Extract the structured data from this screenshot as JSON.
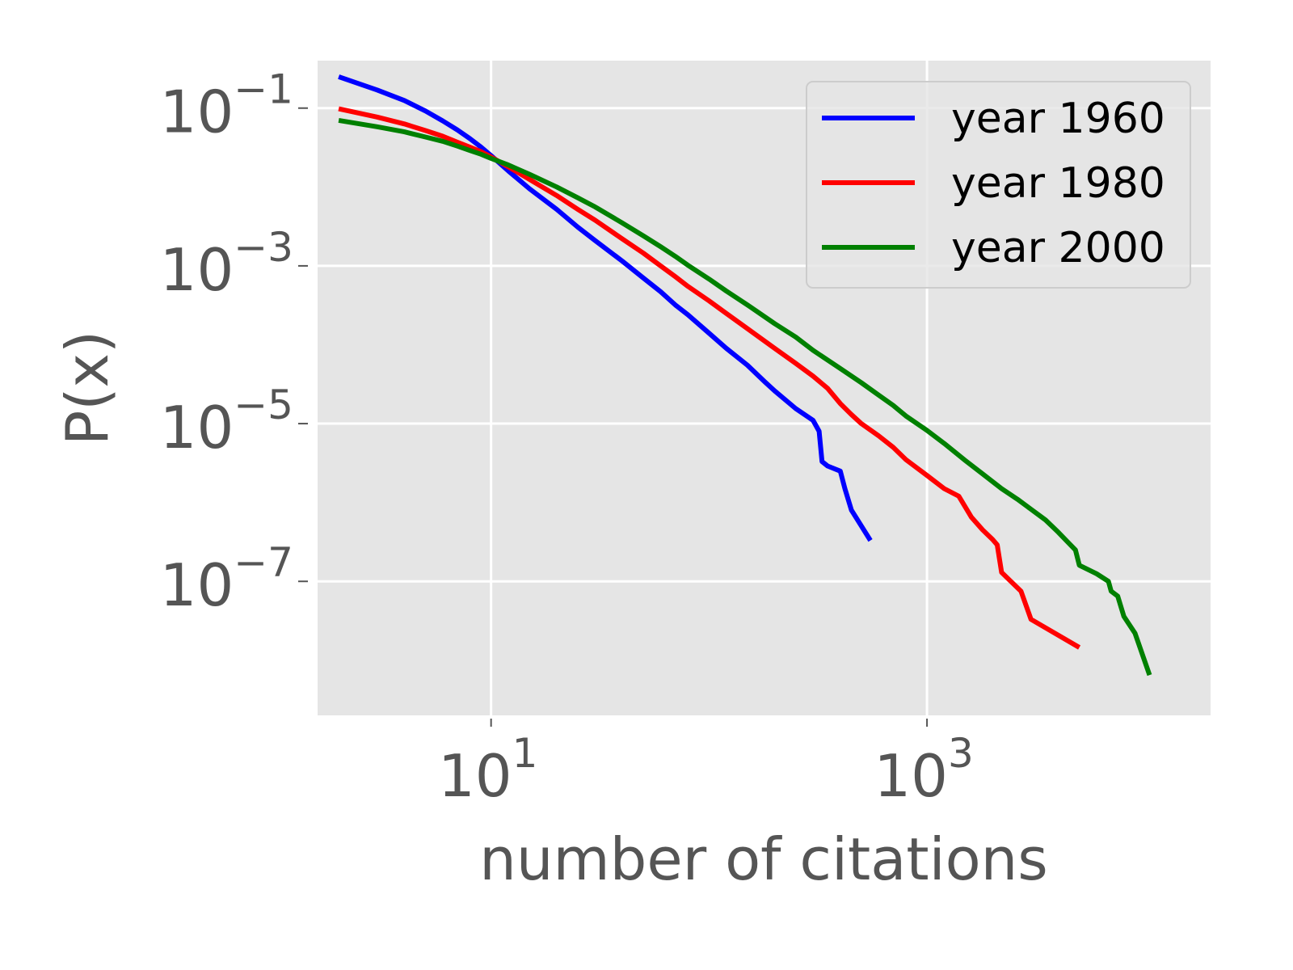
{
  "chart_data": {
    "type": "line",
    "xlabel": "number of citations",
    "ylabel": "P(x)",
    "x_scale": "log",
    "y_scale": "log",
    "xlim": [
      1.6,
      20000
    ],
    "ylim": [
      2e-09,
      0.4
    ],
    "x_ticks": [
      {
        "value": 10,
        "base": "10",
        "exp": "1"
      },
      {
        "value": 1000,
        "base": "10",
        "exp": "3"
      }
    ],
    "y_ticks": [
      {
        "value": 0.1,
        "base": "10",
        "exp": "−1"
      },
      {
        "value": 0.001,
        "base": "10",
        "exp": "−3"
      },
      {
        "value": 1e-05,
        "base": "10",
        "exp": "−5"
      },
      {
        "value": 1e-07,
        "base": "10",
        "exp": "−7"
      }
    ],
    "grid": true,
    "background": "#e5e5e5",
    "grid_color": "#ffffff",
    "legend": {
      "position": "top-right"
    },
    "series": [
      {
        "name": "year 1960",
        "color": "#0000ff",
        "points": [
          [
            2,
            0.25
          ],
          [
            3,
            0.17
          ],
          [
            4,
            0.125
          ],
          [
            5,
            0.092
          ],
          [
            6,
            0.069
          ],
          [
            7,
            0.053
          ],
          [
            8,
            0.041
          ],
          [
            9,
            0.032
          ],
          [
            10,
            0.025
          ],
          [
            12,
            0.016
          ],
          [
            15,
            0.0095
          ],
          [
            20,
            0.0052
          ],
          [
            25,
            0.0031
          ],
          [
            30,
            0.0021
          ],
          [
            40,
            0.00115
          ],
          [
            50,
            0.0007
          ],
          [
            60,
            0.00047
          ],
          [
            70,
            0.00032
          ],
          [
            80,
            0.00024
          ],
          [
            100,
            0.00014
          ],
          [
            120,
            9e-05
          ],
          [
            150,
            5.5e-05
          ],
          [
            180,
            3.4e-05
          ],
          [
            200,
            2.6e-05
          ],
          [
            250,
            1.55e-05
          ],
          [
            300,
            1.1e-05
          ],
          [
            320,
            8e-06
          ],
          [
            330,
            3.3e-06
          ],
          [
            350,
            2.9e-06
          ],
          [
            400,
            2.5e-06
          ],
          [
            420,
            1.5e-06
          ],
          [
            450,
            8e-07
          ],
          [
            550,
            3.3e-07
          ]
        ]
      },
      {
        "name": "year 1980",
        "color": "#ff0000",
        "points": [
          [
            2,
            0.098
          ],
          [
            3,
            0.077
          ],
          [
            4,
            0.063
          ],
          [
            5,
            0.052
          ],
          [
            6,
            0.044
          ],
          [
            7,
            0.037
          ],
          [
            8,
            0.032
          ],
          [
            9,
            0.028
          ],
          [
            10,
            0.024
          ],
          [
            12,
            0.018
          ],
          [
            15,
            0.0125
          ],
          [
            20,
            0.0078
          ],
          [
            25,
            0.0052
          ],
          [
            30,
            0.0038
          ],
          [
            40,
            0.0022
          ],
          [
            50,
            0.00145
          ],
          [
            60,
            0.001
          ],
          [
            70,
            0.00073
          ],
          [
            80,
            0.00055
          ],
          [
            100,
            0.00036
          ],
          [
            120,
            0.00025
          ],
          [
            150,
            0.00016
          ],
          [
            200,
            9e-05
          ],
          [
            250,
            5.8e-05
          ],
          [
            300,
            4e-05
          ],
          [
            350,
            2.8e-05
          ],
          [
            400,
            1.8e-05
          ],
          [
            450,
            1.3e-05
          ],
          [
            500,
            1e-05
          ],
          [
            600,
            7e-06
          ],
          [
            700,
            5e-06
          ],
          [
            800,
            3.5e-06
          ],
          [
            1000,
            2.2e-06
          ],
          [
            1200,
            1.5e-06
          ],
          [
            1400,
            1.2e-06
          ],
          [
            1600,
            6.5e-07
          ],
          [
            1800,
            4.5e-07
          ],
          [
            2000,
            3.4e-07
          ],
          [
            2100,
            2.9e-07
          ],
          [
            2200,
            1.3e-07
          ],
          [
            2700,
            7.5e-08
          ],
          [
            3000,
            3.3e-08
          ],
          [
            5000,
            1.45e-08
          ]
        ]
      },
      {
        "name": "year 2000",
        "color": "#008000",
        "points": [
          [
            2,
            0.07
          ],
          [
            3,
            0.058
          ],
          [
            4,
            0.05
          ],
          [
            5,
            0.043
          ],
          [
            6,
            0.038
          ],
          [
            7,
            0.033
          ],
          [
            8,
            0.029
          ],
          [
            9,
            0.026
          ],
          [
            10,
            0.023
          ],
          [
            12,
            0.019
          ],
          [
            15,
            0.0145
          ],
          [
            20,
            0.01
          ],
          [
            25,
            0.0073
          ],
          [
            30,
            0.0056
          ],
          [
            40,
            0.0035
          ],
          [
            50,
            0.0024
          ],
          [
            60,
            0.00175
          ],
          [
            70,
            0.00132
          ],
          [
            80,
            0.00102
          ],
          [
            100,
            0.00068
          ],
          [
            120,
            0.00048
          ],
          [
            150,
            0.00032
          ],
          [
            200,
            0.000185
          ],
          [
            250,
            0.000125
          ],
          [
            300,
            8.5e-05
          ],
          [
            400,
            5e-05
          ],
          [
            500,
            3.3e-05
          ],
          [
            600,
            2.3e-05
          ],
          [
            700,
            1.7e-05
          ],
          [
            800,
            1.25e-05
          ],
          [
            1000,
            8.2e-06
          ],
          [
            1200,
            5.6e-06
          ],
          [
            1500,
            3.4e-06
          ],
          [
            1800,
            2.3e-06
          ],
          [
            2200,
            1.5e-06
          ],
          [
            2600,
            1.1e-06
          ],
          [
            3000,
            8.2e-07
          ],
          [
            3500,
            6e-07
          ],
          [
            4000,
            4.2e-07
          ],
          [
            4500,
            3e-07
          ],
          [
            4800,
            2.5e-07
          ],
          [
            5000,
            1.6e-07
          ],
          [
            6000,
            1.25e-07
          ],
          [
            6800,
            1e-07
          ],
          [
            7000,
            7.5e-08
          ],
          [
            7500,
            6.5e-08
          ],
          [
            8000,
            3.6e-08
          ],
          [
            9000,
            2.2e-08
          ],
          [
            10500,
            6.5e-09
          ]
        ]
      }
    ]
  }
}
